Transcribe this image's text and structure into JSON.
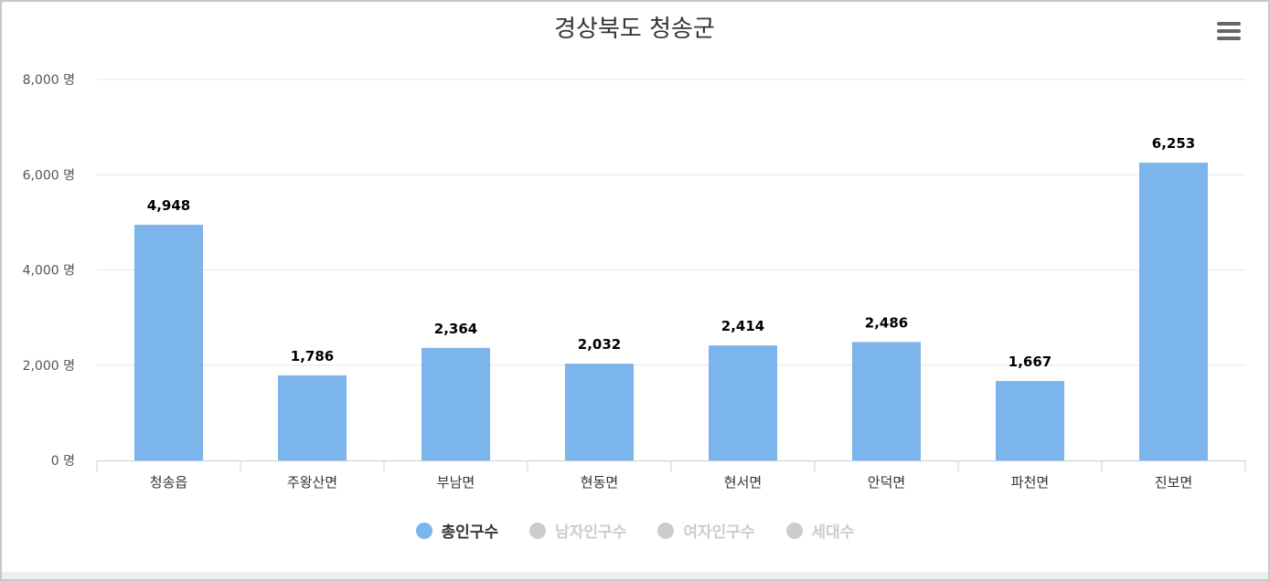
{
  "menu": {
    "icon": "hamburger-menu-icon"
  },
  "chart_data": {
    "type": "bar",
    "title": "경상북도 청송군",
    "xlabel": "",
    "ylabel": "",
    "categories": [
      "청송읍",
      "주왕산면",
      "부남면",
      "현동면",
      "현서면",
      "안덕면",
      "파천면",
      "진보면"
    ],
    "series": [
      {
        "name": "총인구수",
        "values": [
          4948,
          1786,
          2364,
          2032,
          2414,
          2486,
          1667,
          6253
        ],
        "color": "#7cb5ec",
        "visible": true
      }
    ],
    "value_labels": [
      "4,948",
      "1,786",
      "2,364",
      "2,032",
      "2,414",
      "2,486",
      "1,667",
      "6,253"
    ],
    "ylim": [
      0,
      8000
    ],
    "yticks": [
      0,
      2000,
      4000,
      6000,
      8000
    ],
    "ytick_labels": [
      "0 명",
      "2,000 명",
      "4,000 명",
      "6,000 명",
      "8,000 명"
    ],
    "grid": true,
    "legend_position": "bottom-center",
    "legend": [
      {
        "label": "총인구수",
        "active": true,
        "color": "#7cb5ec"
      },
      {
        "label": "남자인구수",
        "active": false,
        "color": "#cccccc"
      },
      {
        "label": "여자인구수",
        "active": false,
        "color": "#cccccc"
      },
      {
        "label": "세대수",
        "active": false,
        "color": "#cccccc"
      }
    ]
  }
}
